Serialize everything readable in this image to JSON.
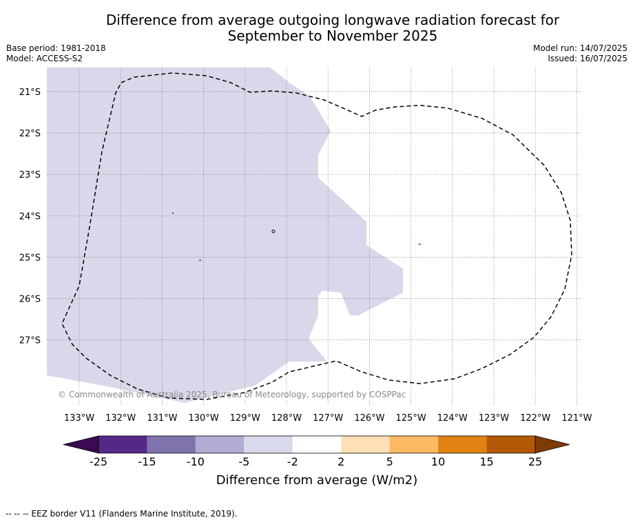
{
  "title_line1": "Difference from average outgoing longwave radiation forecast for",
  "title_line2": "September to November 2025",
  "base_period": "Base period: 1981-2018",
  "model": "Model: ACCESS-S2",
  "model_run": "Model run: 14/07/2025",
  "issued": "Issued: 16/07/2025",
  "copyright": "© Commonwealth of Australia 2025, Bureau of Meteorology, supported by COSPPac",
  "footnote": "--  --  -- EEZ border V11 (Flanders Marine Institute, 2019).",
  "map": {
    "lon_ticks": [
      "133°W",
      "132°W",
      "131°W",
      "130°W",
      "129°W",
      "128°W",
      "127°W",
      "126°W",
      "125°W",
      "124°W",
      "123°W",
      "122°W",
      "121°W"
    ],
    "lat_ticks": [
      "21°S",
      "22°S",
      "23°S",
      "24°S",
      "25°S",
      "26°S",
      "27°S"
    ],
    "lon_range": [
      -133.8,
      -120.9
    ],
    "lat_range": [
      -28.5,
      -20.4
    ],
    "grid": true,
    "region_value_band": "-5 to -2",
    "region_color": "#d8d8ea"
  },
  "colorbar": {
    "title": "Difference from average (W/m2)",
    "ticks": [
      "-25",
      "-15",
      "-10",
      "-5",
      "-2",
      "2",
      "5",
      "10",
      "15",
      "25"
    ],
    "under_color": "#3b0a52",
    "over_color": "#7f3b08",
    "colors": [
      "#542788",
      "#8073ac",
      "#b2abd2",
      "#d8daeb",
      "#ffffff",
      "#fee0b6",
      "#fdb863",
      "#e08214",
      "#b35806"
    ]
  }
}
